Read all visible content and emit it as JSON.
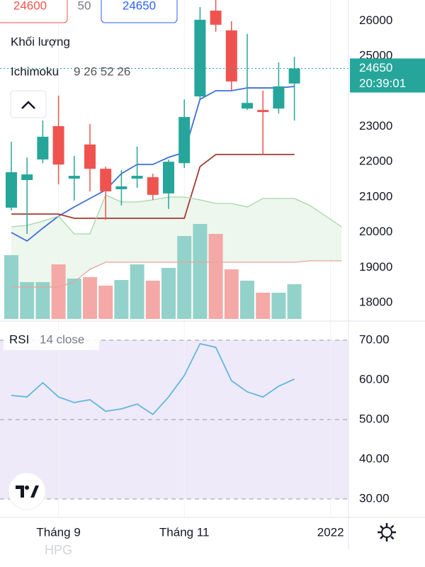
{
  "chart_data": {
    "type": "candlestick",
    "symbol": "HPG",
    "header_values": [
      {
        "value": 24600,
        "color": "#ef5350"
      },
      {
        "value": 50,
        "color": "#787b86"
      },
      {
        "value": 24650,
        "color": "#2962ff"
      }
    ],
    "volume_label": "Khối lượng",
    "indicator_label": {
      "name": "Ichimoku",
      "params": "9 26 52 26"
    },
    "open": [
      20696,
      21480,
      22065,
      23010,
      21520,
      22490,
      21800,
      21220,
      21520,
      21560,
      21100,
      21960,
      23855,
      26290,
      25730,
      23510,
      23470,
      23510,
      24220
    ],
    "close": [
      21702,
      21640,
      22710,
      21920,
      21600,
      21800,
      21160,
      21300,
      21600,
      21060,
      22000,
      23270,
      26030,
      25890,
      24280,
      23670,
      23410,
      24140,
      24650
    ],
    "high": [
      22567,
      22120,
      23170,
      23875,
      22165,
      23070,
      21860,
      21760,
      22430,
      21660,
      22060,
      23770,
      26390,
      26590,
      25990,
      25630,
      24020,
      24820,
      24980
    ],
    "low": [
      20616,
      19950,
      21960,
      21360,
      20900,
      21160,
      20350,
      20760,
      21260,
      20920,
      20660,
      21820,
      23770,
      25690,
      24020,
      23470,
      22200,
      23370,
      23170
    ],
    "up_color": "#26a69a",
    "down_color": "#ef5350",
    "volume": {
      "values": [
        90,
        52,
        52,
        77,
        57,
        59,
        47,
        55,
        77,
        54,
        72,
        117,
        134,
        120,
        70,
        54,
        37,
        37,
        49
      ],
      "vlim": [
        0,
        450
      ],
      "up_color": "#93d2ca",
      "down_color": "#f4a9a7"
    },
    "ichimoku": [
      {
        "color": "#3f6ed8",
        "values": [
          19992,
          19750,
          20113,
          20455,
          20716,
          20958,
          21199,
          21662,
          21923,
          21923,
          22125,
          22266,
          23774,
          24016,
          24016,
          24096,
          24096,
          24096,
          24137
        ]
      },
      {
        "color": "#a33a32",
        "values": [
          20515,
          20515,
          20515,
          20515,
          20395,
          20395,
          20395,
          20395,
          20395,
          20395,
          20395,
          20395,
          21863,
          22205,
          22205,
          22205,
          22205,
          22205,
          22205
        ]
      },
      {
        "color": "#a5d6a7",
        "values": [
          20153,
          20193,
          20314,
          20455,
          19952,
          19952,
          21058,
          20857,
          20857,
          20917,
          20998,
          20998,
          20917,
          20817,
          20817,
          20716,
          20958,
          20958,
          20958,
          20756,
          20455,
          20153
        ]
      },
      {
        "color": "#e4a59c",
        "values": [
          18443,
          18443,
          18443,
          18443,
          18584,
          18946,
          19147,
          19147,
          19147,
          19147,
          19147,
          19147,
          19147,
          19147,
          19147,
          19147,
          19147,
          19147,
          19147,
          19187,
          19187,
          19187
        ]
      }
    ],
    "cloud_color": "#e6f3e6",
    "last_price": 24650,
    "countdown": "20:39:01",
    "xlim": [
      -0.72,
      21.44
    ],
    "xticks": [
      {
        "value": 3,
        "label": "Tháng 9"
      },
      {
        "value": 11,
        "label": "Tháng 11"
      },
      {
        "value": 20.3,
        "label": "2022"
      }
    ],
    "ylim": [
      17537,
      26592
    ],
    "yticks": [
      18000,
      19000,
      20000,
      21000,
      22000,
      23000,
      25000,
      26000
    ],
    "rsi": {
      "name": "RSI",
      "params": "14 close",
      "color": "#5fb8e0",
      "values": [
        56.07,
        55.7,
        59.3,
        55.7,
        54.3,
        55.0,
        52.1,
        52.7,
        53.9,
        51.3,
        55.7,
        61.1,
        69.1,
        68.2,
        59.8,
        57.0,
        55.7,
        58.4,
        60.2
      ],
      "ylim": [
        25.36,
        74.82
      ],
      "yticks": [
        {
          "value": 70,
          "label": "70.00"
        },
        {
          "value": 60,
          "label": "60.00"
        },
        {
          "value": 50,
          "label": "50.00"
        },
        {
          "value": 40,
          "label": "40.00"
        },
        {
          "value": 30,
          "label": "30.00"
        }
      ],
      "band": [
        30,
        70
      ],
      "band_color": "#efeaf9",
      "levels": [
        70,
        50,
        30
      ]
    }
  }
}
